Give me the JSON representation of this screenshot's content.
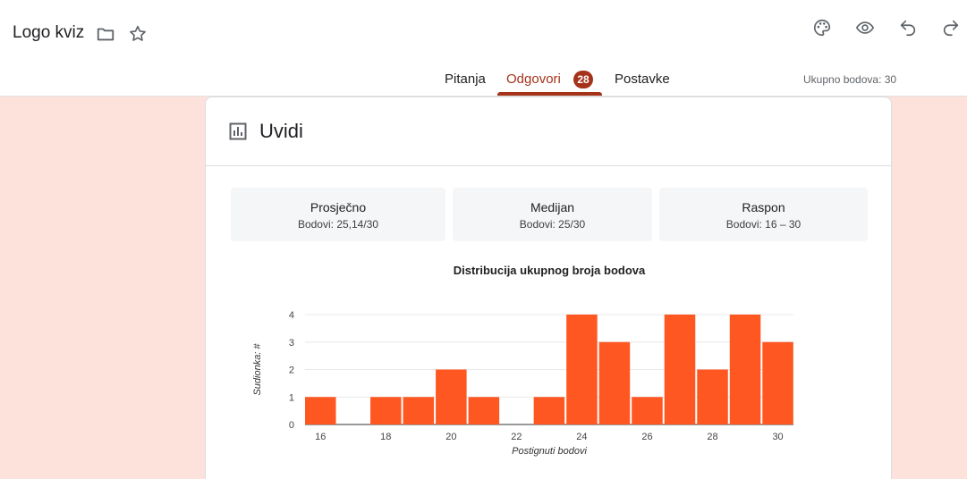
{
  "header": {
    "title": "Logo kviz",
    "icons": [
      "folder-icon",
      "star-icon",
      "palette-icon",
      "eye-icon",
      "undo-icon",
      "redo-icon"
    ]
  },
  "tabs": [
    {
      "label": "Pitanja"
    },
    {
      "label": "Odgovori",
      "active": true
    },
    {
      "label": "Postavke"
    }
  ],
  "responses_badge": "28",
  "total_points": "Ukupno bodova: 30",
  "insights": {
    "title": "Uvidi",
    "stats": [
      {
        "title": "Prosječno",
        "value": "Bodovi: 25,14/30"
      },
      {
        "title": "Medijan",
        "value": "Bodovi: 25/30"
      },
      {
        "title": "Raspon",
        "value": "Bodovi: 16 – 30"
      }
    ]
  },
  "colors": {
    "accent": "#a4331a",
    "bar": "#ff5722",
    "background": "#fde2dc"
  },
  "chart_data": {
    "type": "bar",
    "title": "Distribucija ukupnog broja bodova",
    "xlabel": "Postignuti bodovi",
    "ylabel": "Sudionka: #",
    "x": [
      16,
      17,
      18,
      19,
      20,
      21,
      22,
      23,
      24,
      25,
      26,
      27,
      28,
      29,
      30
    ],
    "values": [
      1,
      0,
      1,
      1,
      2,
      1,
      0,
      1,
      4,
      3,
      1,
      4,
      2,
      4,
      3
    ],
    "xticks": [
      16,
      18,
      20,
      22,
      24,
      26,
      28,
      30
    ],
    "yticks": [
      0,
      1,
      2,
      3,
      4
    ],
    "ylim": [
      0,
      4
    ],
    "grid": true
  }
}
